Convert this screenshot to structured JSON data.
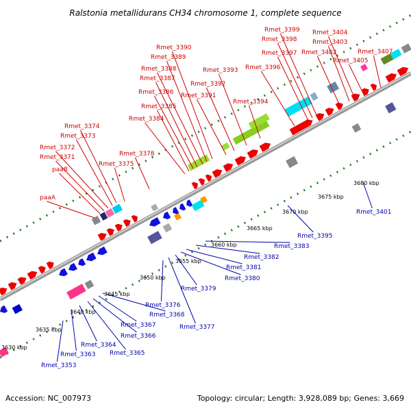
{
  "title": "Ralstonia metallidurans CH34 chromosome 1, complete sequence",
  "footer": {
    "accession": "Accession: NC_007973",
    "summary": "Topology: circular; Length: 3,928,089 bp; Genes: 3,669"
  },
  "kbp_labels": [
    "3630 kbp",
    "3635 kbp",
    "3640 kbp",
    "3645 kbp",
    "3650 kbp",
    "3655 kbp",
    "3660 kbp",
    "3665 kbp",
    "3670 kbp",
    "3675 kbp",
    "3680 kbp"
  ],
  "genes_top": [
    "paaA",
    "paaB",
    "Rmet_3371",
    "Rmet_3372",
    "Rmet_3373",
    "Rmet_3374",
    "Rmet_3375",
    "Rmet_3378",
    "Rmet_3384",
    "Rmet_3385",
    "Rmet_3386",
    "Rmet_3387",
    "Rmet_3388",
    "Rmet_3389",
    "Rmet_3390",
    "Rmet_3391",
    "Rmet_3392",
    "Rmet_3393",
    "Rmet_3394",
    "Rmet_3396",
    "Rmet_3397",
    "Rmet_3398",
    "Rmet_3399",
    "Rmet_3402",
    "Rmet_3403",
    "Rmet_3404",
    "Rmet_3405",
    "Rmet_3407"
  ],
  "genes_bottom": [
    "Rmet_3353",
    "Rmet_3363",
    "Rmet_3364",
    "Rmet_3365",
    "Rmet_3366",
    "Rmet_3367",
    "Rmet_3368",
    "Rmet_3376",
    "Rmet_3377",
    "Rmet_3379",
    "Rmet_3380",
    "Rmet_3381",
    "Rmet_3382",
    "Rmet_3383",
    "Rmet_3395",
    "Rmet_3401"
  ],
  "colors": {
    "forward_gene": "#ee0000",
    "reverse_gene": "#1111dd",
    "label_top": "#cc0000",
    "label_bottom": "#0000aa",
    "backbone": "#888888",
    "dots": "#227722"
  }
}
